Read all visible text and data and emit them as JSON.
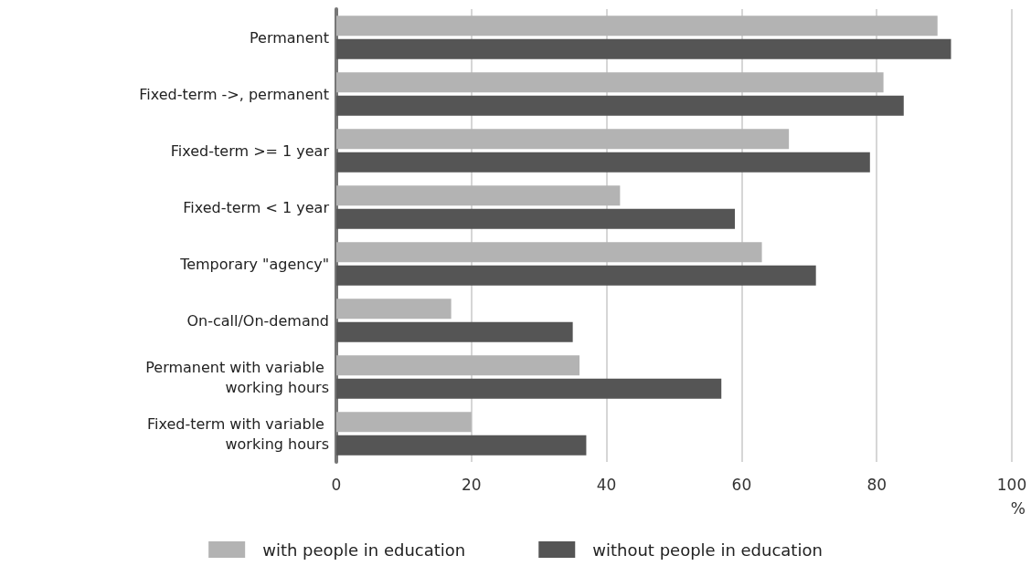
{
  "chart_data": {
    "type": "bar",
    "orientation": "horizontal",
    "xlabel": "%",
    "categories": [
      "Permanent",
      "Fixed-term ->, permanent",
      "Fixed-term >= 1 year",
      "Fixed-term < 1 year",
      "Temporary \"agency\"",
      "On-call/On-demand",
      "Permanent with variable working hours",
      "Fixed-term with variable working hours"
    ],
    "series": [
      {
        "name": "with people in education",
        "color": "#b3b3b3",
        "values": [
          89,
          81,
          67,
          42,
          63,
          17,
          36,
          20
        ]
      },
      {
        "name": "without people in education",
        "color": "#555555",
        "values": [
          91,
          84,
          79,
          59,
          71,
          35,
          57,
          37
        ]
      }
    ],
    "xlim": [
      0,
      100
    ],
    "xticks": [
      0,
      20,
      40,
      60,
      80,
      100
    ],
    "grid": "x",
    "legend": "bottom"
  }
}
